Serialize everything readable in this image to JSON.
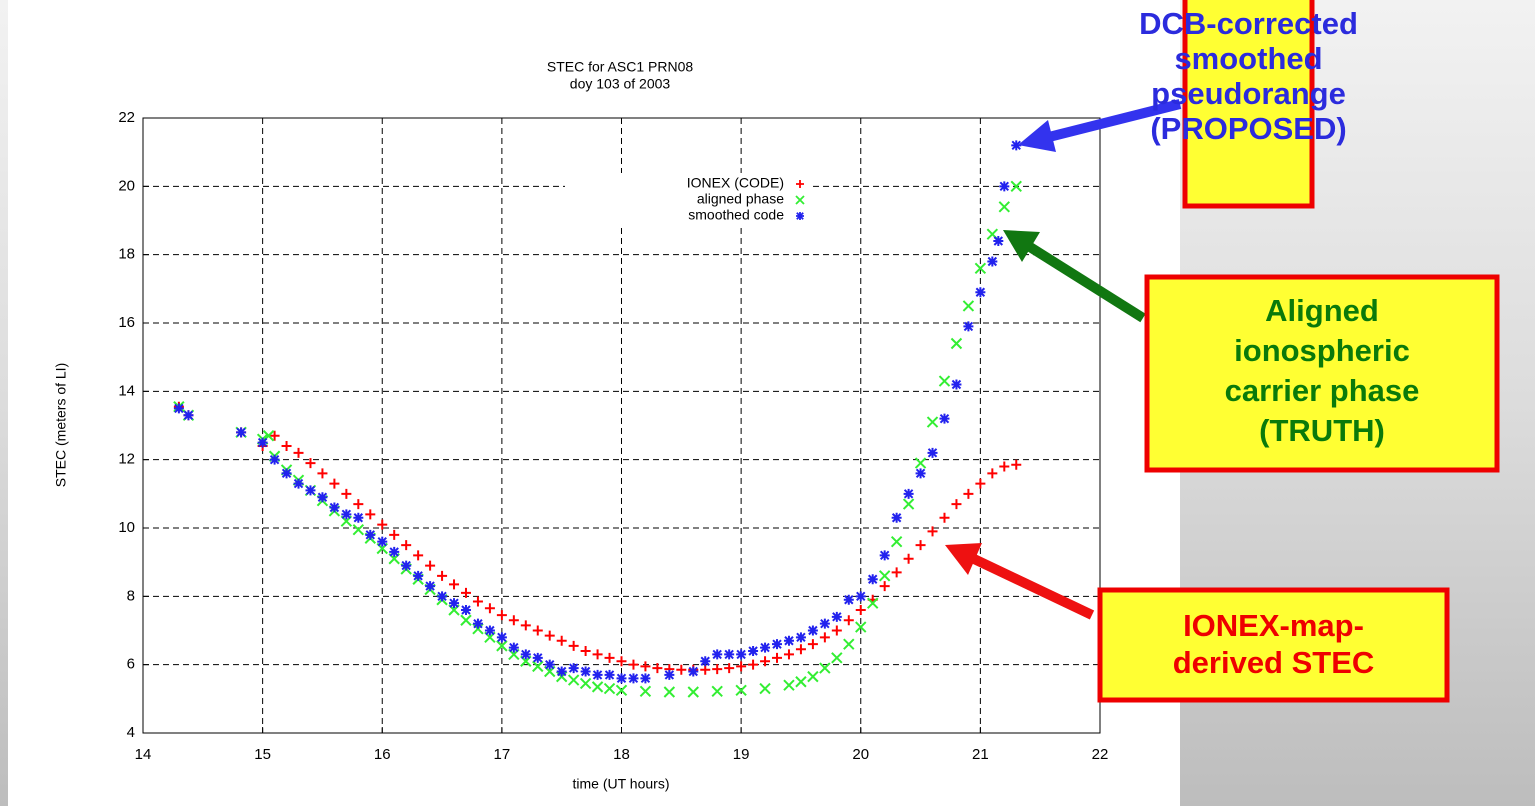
{
  "chart_data": {
    "type": "scatter",
    "title": "STEC for ASC1 PRN08",
    "subtitle": "doy 103 of 2003",
    "x_label": "time (UT hours)",
    "y_label": "STEC (meters of LI)",
    "xlim": [
      14,
      22
    ],
    "xticks": [
      14,
      15,
      16,
      17,
      18,
      19,
      20,
      21,
      22
    ],
    "ylim": [
      4,
      22
    ],
    "yticks": [
      4,
      6,
      8,
      10,
      12,
      14,
      16,
      18,
      20,
      22
    ],
    "grid": true,
    "series": [
      {
        "name": "IONEX (CODE)",
        "color": "#ff0000",
        "marker": "+",
        "x": [
          14.3,
          14.38,
          14.82,
          15.0,
          15.1,
          15.2,
          15.3,
          15.4,
          15.5,
          15.6,
          15.7,
          15.8,
          15.9,
          16.0,
          16.1,
          16.2,
          16.3,
          16.4,
          16.5,
          16.6,
          16.7,
          16.8,
          16.9,
          17.0,
          17.1,
          17.2,
          17.3,
          17.4,
          17.5,
          17.6,
          17.7,
          17.8,
          17.9,
          18.0,
          18.1,
          18.2,
          18.3,
          18.4,
          18.5,
          18.6,
          18.7,
          18.8,
          18.9,
          19.0,
          19.1,
          19.2,
          19.3,
          19.4,
          19.5,
          19.6,
          19.7,
          19.8,
          19.9,
          20.0,
          20.1,
          20.2,
          20.3,
          20.4,
          20.5,
          20.6,
          20.7,
          20.8,
          20.9,
          21.0,
          21.1,
          21.2,
          21.3
        ],
        "values": [
          13.55,
          13.3,
          12.8,
          12.4,
          12.7,
          12.4,
          12.2,
          11.9,
          11.6,
          11.3,
          11.0,
          10.7,
          10.4,
          10.1,
          9.8,
          9.5,
          9.2,
          8.9,
          8.6,
          8.35,
          8.1,
          7.85,
          7.65,
          7.45,
          7.3,
          7.15,
          7.0,
          6.85,
          6.7,
          6.55,
          6.4,
          6.3,
          6.2,
          6.1,
          6.0,
          5.95,
          5.9,
          5.87,
          5.85,
          5.85,
          5.85,
          5.87,
          5.9,
          5.95,
          6.0,
          6.1,
          6.2,
          6.3,
          6.45,
          6.6,
          6.8,
          7.0,
          7.3,
          7.6,
          7.9,
          8.3,
          8.7,
          9.1,
          9.5,
          9.9,
          10.3,
          10.7,
          11.0,
          11.3,
          11.6,
          11.8,
          11.85
        ]
      },
      {
        "name": "aligned phase",
        "color": "#33ee33",
        "marker": "x",
        "x": [
          14.3,
          14.38,
          14.82,
          15.0,
          15.05,
          15.1,
          15.2,
          15.3,
          15.4,
          15.5,
          15.6,
          15.7,
          15.8,
          15.9,
          16.0,
          16.1,
          16.2,
          16.3,
          16.4,
          16.5,
          16.6,
          16.7,
          16.8,
          16.9,
          17.0,
          17.1,
          17.2,
          17.3,
          17.4,
          17.5,
          17.6,
          17.7,
          17.8,
          17.9,
          18.0,
          18.2,
          18.4,
          18.6,
          18.8,
          19.0,
          19.2,
          19.4,
          19.5,
          19.6,
          19.7,
          19.8,
          19.9,
          20.0,
          20.1,
          20.2,
          20.3,
          20.4,
          20.5,
          20.6,
          20.7,
          20.8,
          20.9,
          21.0,
          21.1,
          21.2,
          21.3
        ],
        "values": [
          13.55,
          13.3,
          12.8,
          12.6,
          12.7,
          12.1,
          11.7,
          11.4,
          11.1,
          10.8,
          10.5,
          10.2,
          9.95,
          9.7,
          9.4,
          9.1,
          8.8,
          8.5,
          8.2,
          7.9,
          7.6,
          7.3,
          7.05,
          6.8,
          6.55,
          6.3,
          6.1,
          5.95,
          5.8,
          5.65,
          5.55,
          5.45,
          5.35,
          5.3,
          5.25,
          5.22,
          5.2,
          5.2,
          5.22,
          5.25,
          5.3,
          5.4,
          5.5,
          5.65,
          5.9,
          6.2,
          6.6,
          7.1,
          7.8,
          8.6,
          9.6,
          10.7,
          11.9,
          13.1,
          14.3,
          15.4,
          16.5,
          17.6,
          18.6,
          19.4,
          20.0
        ]
      },
      {
        "name": "smoothed code",
        "color": "#2222ee",
        "marker": "*",
        "x": [
          14.3,
          14.38,
          14.82,
          15.0,
          15.1,
          15.2,
          15.3,
          15.4,
          15.5,
          15.6,
          15.7,
          15.8,
          15.9,
          16.0,
          16.1,
          16.2,
          16.3,
          16.4,
          16.5,
          16.6,
          16.7,
          16.8,
          16.9,
          17.0,
          17.1,
          17.2,
          17.3,
          17.4,
          17.5,
          17.6,
          17.7,
          17.8,
          17.9,
          18.0,
          18.1,
          18.2,
          18.4,
          18.6,
          18.7,
          18.8,
          18.9,
          19.0,
          19.1,
          19.2,
          19.3,
          19.4,
          19.5,
          19.6,
          19.7,
          19.8,
          19.9,
          20.0,
          20.1,
          20.2,
          20.3,
          20.4,
          20.5,
          20.6,
          20.7,
          20.8,
          20.9,
          21.0,
          21.1,
          21.15,
          21.2,
          21.3
        ],
        "values": [
          13.5,
          13.3,
          12.8,
          12.5,
          12.0,
          11.6,
          11.3,
          11.1,
          10.9,
          10.6,
          10.4,
          10.3,
          9.8,
          9.6,
          9.3,
          8.9,
          8.6,
          8.3,
          8.0,
          7.8,
          7.6,
          7.2,
          7.0,
          6.8,
          6.5,
          6.3,
          6.2,
          6.0,
          5.8,
          5.9,
          5.8,
          5.7,
          5.7,
          5.6,
          5.6,
          5.6,
          5.7,
          5.8,
          6.1,
          6.3,
          6.3,
          6.3,
          6.4,
          6.5,
          6.6,
          6.7,
          6.8,
          7.0,
          7.2,
          7.4,
          7.9,
          8.0,
          8.5,
          9.2,
          10.3,
          11.0,
          11.6,
          12.2,
          13.2,
          14.2,
          15.9,
          16.9,
          17.8,
          18.4,
          20.0,
          21.2
        ]
      }
    ],
    "annotations": [
      {
        "lines": [
          "DCB-corrected",
          "smoothed",
          "pseudorange",
          "(PROPOSED)"
        ],
        "color": "#2b2bdd"
      },
      {
        "lines": [
          "Aligned",
          "ionospheric",
          "carrier phase",
          "(TRUTH)"
        ],
        "color": "#0a7a0a"
      },
      {
        "lines": [
          "IONEX-map-",
          "derived STEC"
        ],
        "color": "#ee0000"
      }
    ]
  }
}
